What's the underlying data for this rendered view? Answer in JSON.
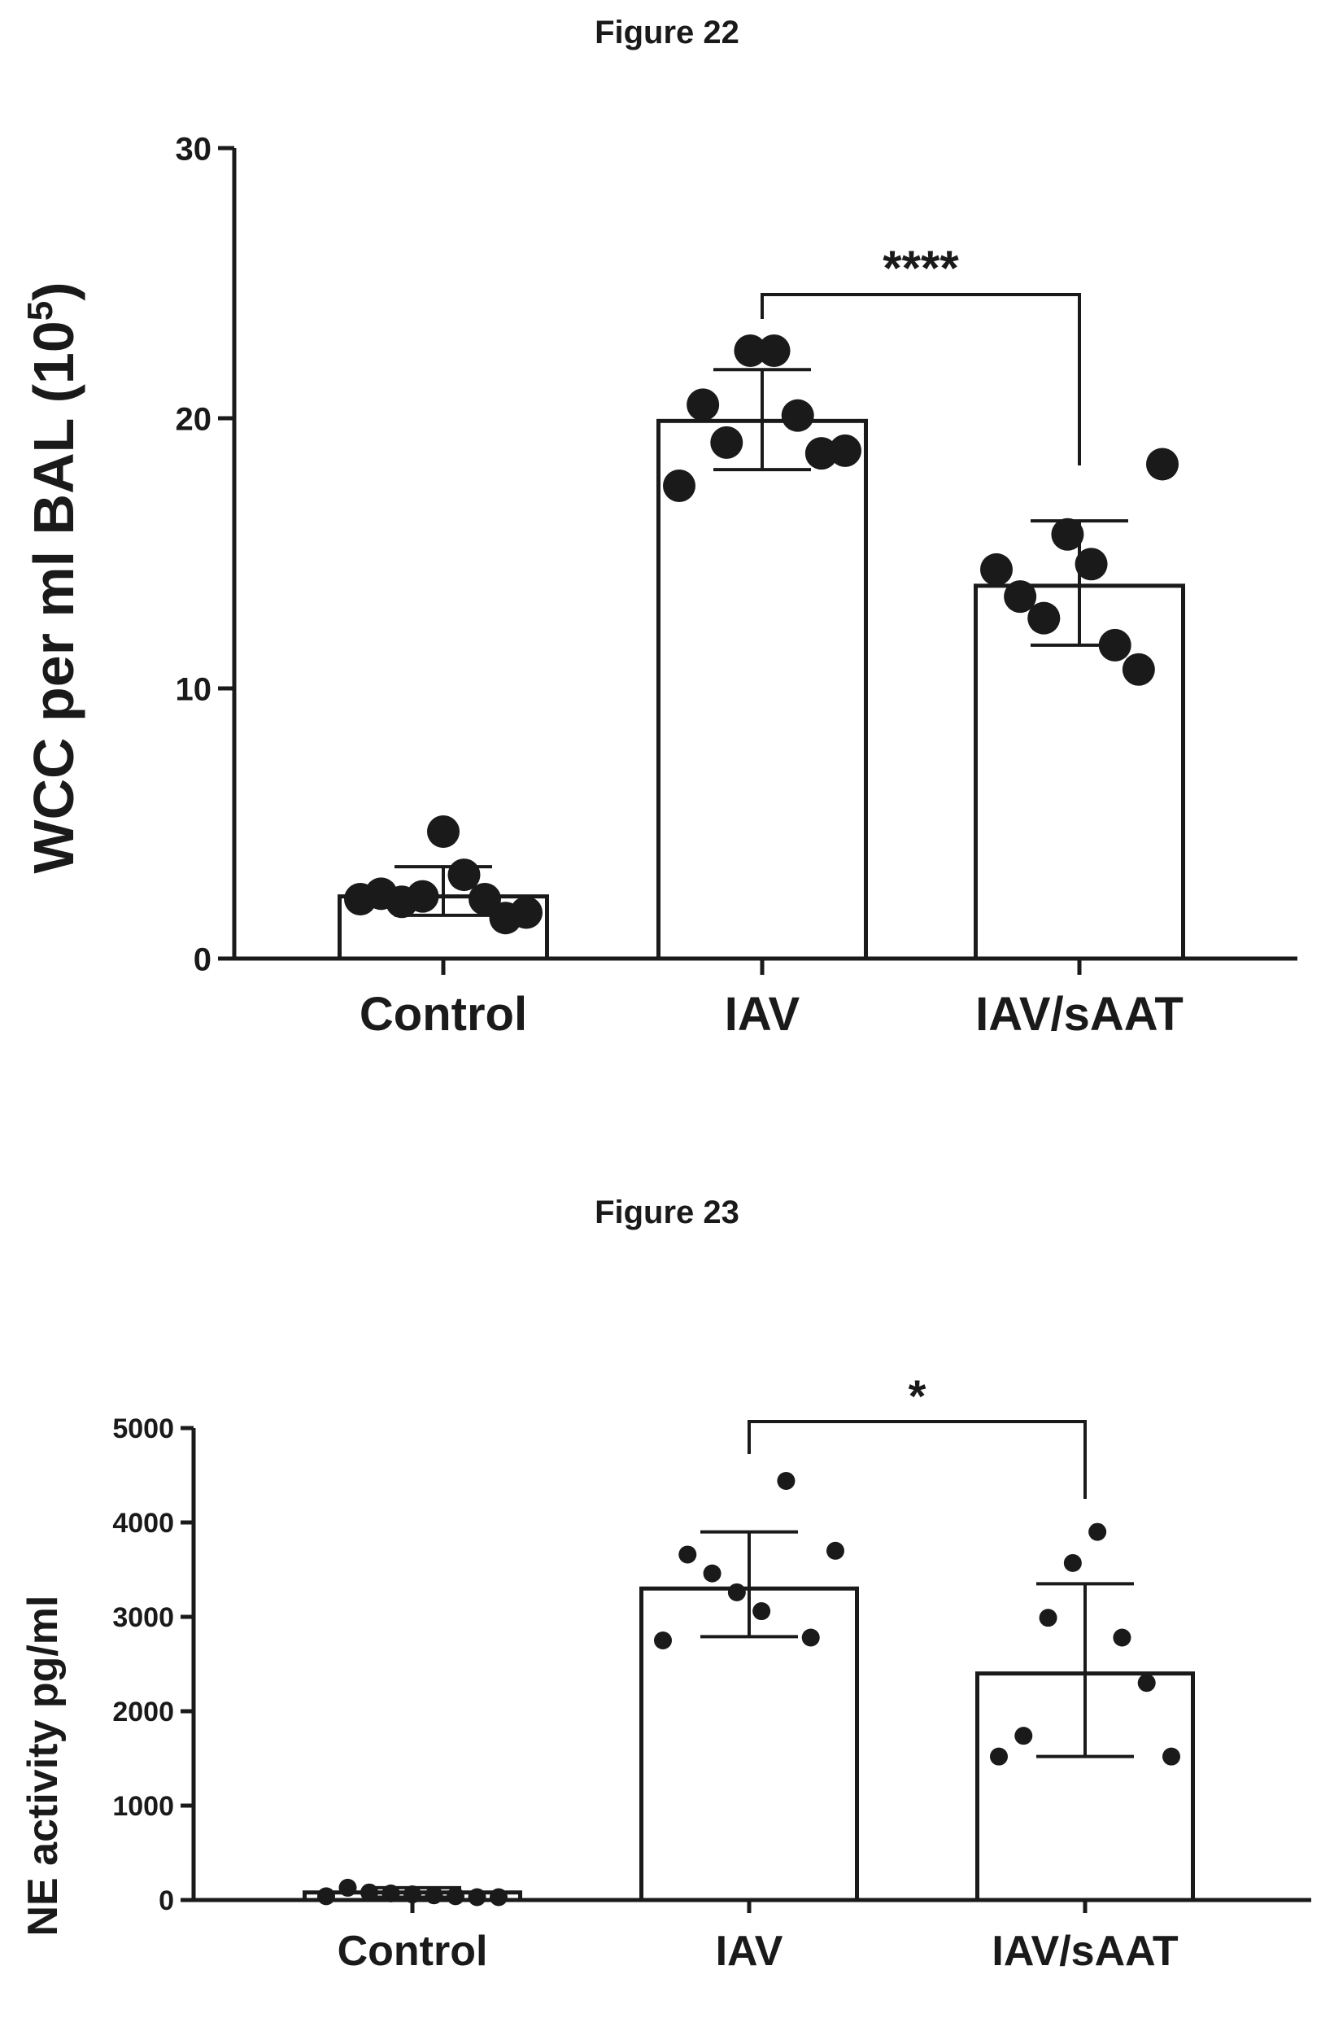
{
  "chart_data": [
    {
      "type": "bar",
      "title": "Figure 22",
      "ylabel": "WCC per ml BAL (10",
      "ylabel_sup": "5",
      "ylabel_close": ")",
      "categories": [
        "Control",
        "IAV",
        "IAV/sAAT"
      ],
      "values": [
        2.3,
        19.9,
        13.8
      ],
      "error": [
        [
          1.6,
          3.4
        ],
        [
          18.1,
          21.8
        ],
        [
          11.6,
          16.2
        ]
      ],
      "points": [
        [
          2.2,
          2.4,
          2.1,
          2.3,
          4.7,
          3.1,
          2.2,
          1.5,
          1.7
        ],
        [
          17.5,
          20.5,
          19.1,
          22.5,
          22.5,
          20.1,
          18.7,
          18.8
        ],
        [
          14.4,
          13.4,
          12.6,
          15.7,
          14.6,
          11.6,
          10.7,
          18.3
        ]
      ],
      "ylim": [
        0,
        30
      ],
      "yticks": [
        0,
        10,
        20,
        30
      ],
      "significance": {
        "from": "IAV",
        "to": "IAV/sAAT",
        "label": "****"
      }
    },
    {
      "type": "bar",
      "title": "Figure 23",
      "ylabel": "NE activity pg/ml",
      "categories": [
        "Control",
        "IAV",
        "IAV/sAAT"
      ],
      "values": [
        80,
        3300,
        2400
      ],
      "error": [
        [
          30,
          130
        ],
        [
          2790,
          3900
        ],
        [
          1520,
          3350
        ]
      ],
      "points": [
        [
          40,
          130,
          80,
          70,
          60,
          50,
          40,
          30,
          30
        ],
        [
          2750,
          3660,
          3460,
          3260,
          3060,
          4440,
          2780,
          3700
        ],
        [
          1520,
          1740,
          2990,
          3570,
          3900,
          2780,
          2300,
          1520
        ]
      ],
      "ylim": [
        0,
        5000
      ],
      "yticks": [
        0,
        1000,
        2000,
        3000,
        4000,
        5000
      ],
      "significance": {
        "from": "IAV",
        "to": "IAV/sAAT",
        "label": "*"
      }
    }
  ]
}
